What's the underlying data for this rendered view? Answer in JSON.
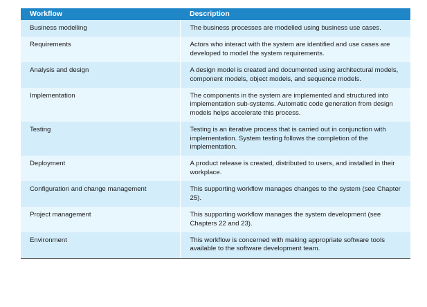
{
  "header": {
    "workflow": "Workflow",
    "description": "Description"
  },
  "rows": [
    {
      "workflow": "Business modelling",
      "description": "The business processes are modelled using business use cases."
    },
    {
      "workflow": "Requirements",
      "description": "Actors who interact with the system are identified and use cases are developed to model the system requirements."
    },
    {
      "workflow": "Analysis and design",
      "description": "A design model is created and documented using architectural models, component models, object models, and sequence models."
    },
    {
      "workflow": "Implementation",
      "description": "The components in the system are implemented and structured into implementation sub-systems. Automatic code generation from design models helps accelerate this process."
    },
    {
      "workflow": "Testing",
      "description": "Testing is an iterative process that is carried out in conjunction with implementation. System testing follows the completion of the implementation."
    },
    {
      "workflow": "Deployment",
      "description": "A product release is created, distributed to users, and installed in their workplace."
    },
    {
      "workflow": "Configuration and change management",
      "description": "This supporting workflow manages changes to the system (see Chapter 25)."
    },
    {
      "workflow": "Project management",
      "description": "This supporting workflow manages the system development (see Chapters 22 and 23)."
    },
    {
      "workflow": "Environment",
      "description": "This workflow is concerned with making appropriate software tools available to the software development team."
    }
  ],
  "colors": {
    "header_bg": "#1f86c8",
    "row_odd": "#d4edfb",
    "row_even": "#e8f6fd"
  }
}
